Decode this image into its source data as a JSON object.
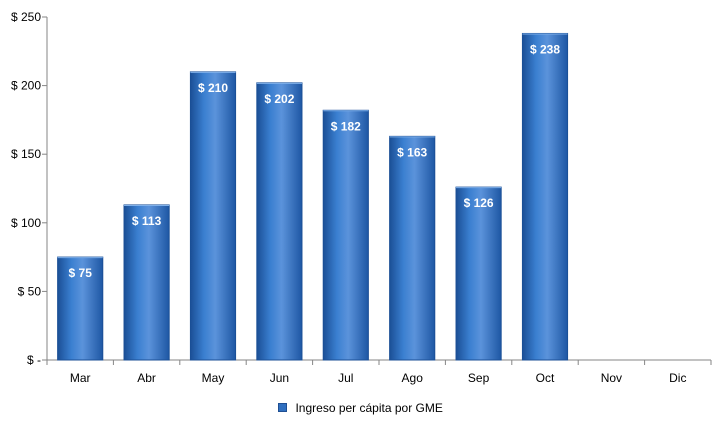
{
  "chart_data": {
    "type": "bar",
    "categories": [
      "Mar",
      "Abr",
      "May",
      "Jun",
      "Jul",
      "Ago",
      "Sep",
      "Oct",
      "Nov",
      "Dic"
    ],
    "series": [
      {
        "name": "Ingreso per cápita por GME",
        "values": [
          75,
          113,
          210,
          202,
          182,
          163,
          126,
          238,
          null,
          null
        ]
      }
    ],
    "data_labels": [
      "$ 75",
      "$ 113",
      "$ 210",
      "$ 202",
      "$ 182",
      "$ 163",
      "$ 126",
      "$ 238",
      "",
      ""
    ],
    "y_ticks": [
      "$ -",
      "$ 50",
      "$ 100",
      "$ 150",
      "$ 200",
      "$ 250"
    ],
    "y_tick_values": [
      0,
      50,
      100,
      150,
      200,
      250
    ],
    "ylim": [
      0,
      250
    ],
    "grid": false,
    "legend_position": "bottom",
    "colors": {
      "bar": "#2f6fbf",
      "bar_dark": "#1b4f96",
      "bar_light": "#5b93db"
    }
  }
}
